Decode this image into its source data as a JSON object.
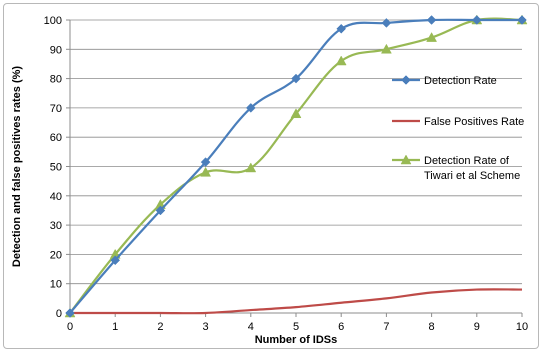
{
  "chart_data": {
    "type": "line",
    "title": "",
    "xlabel": "Number of IDSs",
    "ylabel": "Detection and false positives rates (%)",
    "x": [
      0,
      1,
      2,
      3,
      4,
      5,
      6,
      7,
      8,
      9,
      10
    ],
    "xlim": [
      0,
      10
    ],
    "ylim": [
      0,
      100
    ],
    "yticks": [
      0,
      10,
      20,
      30,
      40,
      50,
      60,
      70,
      80,
      90,
      100
    ],
    "grid": true,
    "legend_position": "right",
    "series": [
      {
        "name": "Detection Rate",
        "values": [
          0,
          18,
          35,
          51.5,
          70,
          80,
          97,
          99,
          100,
          100,
          100
        ],
        "color": "#4a7ebb",
        "marker": "diamond"
      },
      {
        "name": "False Positives Rate",
        "values": [
          0,
          0,
          0,
          0,
          1,
          2,
          3.5,
          5,
          7,
          8,
          8
        ],
        "color": "#be4b48",
        "marker": "none"
      },
      {
        "name": "Detection Rate of Tiwari et al Scheme",
        "legend_lines": [
          "Detection Rate of",
          "Tiwari et al Scheme"
        ],
        "values": [
          0,
          20,
          37,
          48,
          49.5,
          68,
          86,
          90,
          94,
          100,
          100
        ],
        "color": "#98b954",
        "marker": "triangle"
      }
    ]
  }
}
